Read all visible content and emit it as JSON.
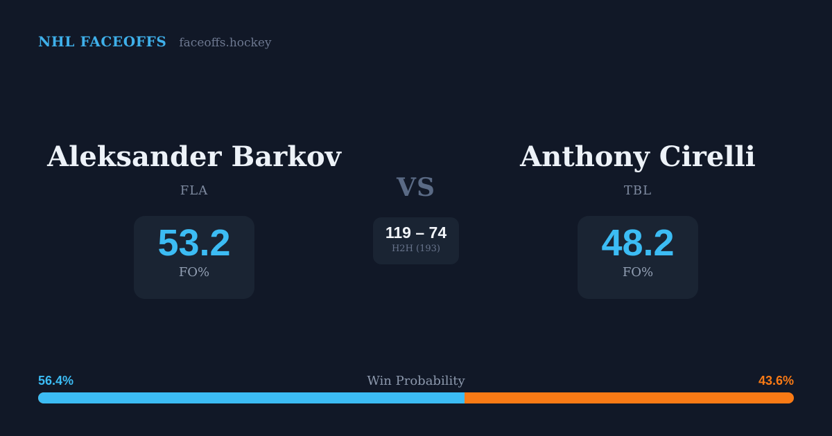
{
  "header": {
    "brand": "NHL FACEOFFS",
    "site": "faceoffs.hockey"
  },
  "matchup": {
    "left": {
      "name": "Aleksander Barkov",
      "team": "FLA",
      "value": "53.2",
      "stat_label": "FO%"
    },
    "vs_label": "VS",
    "h2h": {
      "score": "119 – 74",
      "label": "H2H (193)"
    },
    "right": {
      "name": "Anthony Cirelli",
      "team": "TBL",
      "value": "48.2",
      "stat_label": "FO%"
    }
  },
  "win_probability": {
    "title": "Win Probability",
    "left_label": "56.4%",
    "right_label": "43.6%",
    "left_value": 56.4,
    "right_value": 43.6
  },
  "colors": {
    "background": "#111827",
    "card": "#1a2433",
    "accent_blue": "#3cbcf4",
    "accent_orange": "#f97a15"
  }
}
